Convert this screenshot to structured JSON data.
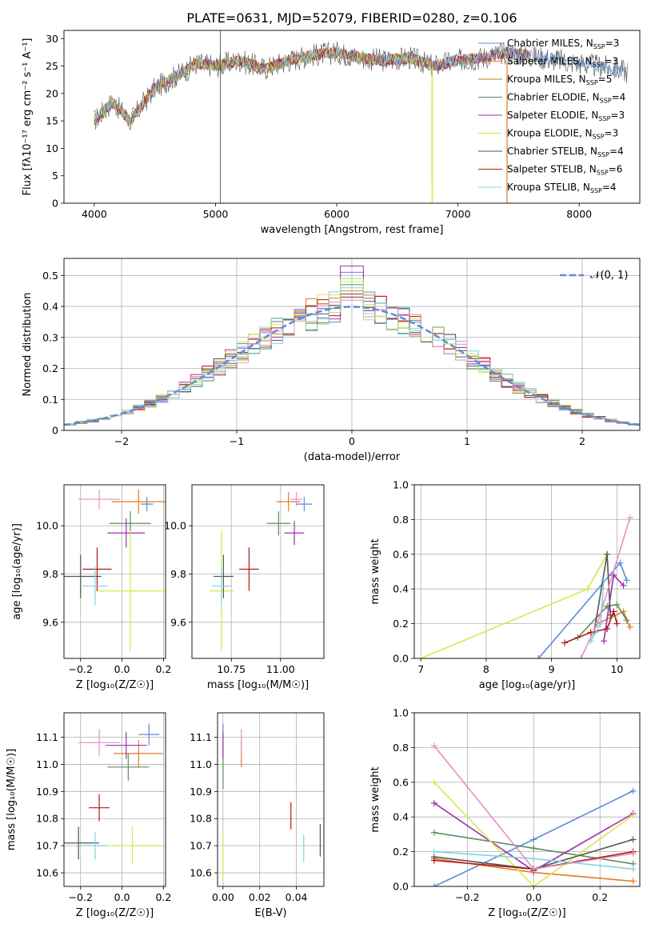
{
  "title": "PLATE=0631, MJD=52079, FIBERID=0280, z=0.106",
  "colors": {
    "chabrier_miles": "#5b8bd9",
    "salpeter_miles": "#e07d25",
    "kroupa_miles": "#b8860b",
    "chabrier_elodie": "#5e8c5e",
    "salpeter_elodie": "#9b30b0",
    "kroupa_elodie": "#d6e84c",
    "chabrier_stelib": "#555555",
    "salpeter_stelib": "#b01818",
    "kroupa_stelib": "#7fd4e0",
    "pink": "#e58fc0",
    "lightgreen": "#a6e08a"
  },
  "legend": [
    {
      "label": "Chabrier MILES, N",
      "sub": "SSP",
      "tail": "=3",
      "color": "#5b8bd9"
    },
    {
      "label": "Salpeter MILES, N",
      "sub": "SSP",
      "tail": "=3",
      "color": "#e07d25"
    },
    {
      "label": "Kroupa MILES, N",
      "sub": "SSP",
      "tail": "=5",
      "color": "#b8860b"
    },
    {
      "label": "Chabrier ELODIE, N",
      "sub": "SSP",
      "tail": "=4",
      "color": "#5e8c5e"
    },
    {
      "label": "Salpeter ELODIE, N",
      "sub": "SSP",
      "tail": "=3",
      "color": "#9b30b0"
    },
    {
      "label": "Kroupa ELODIE, N",
      "sub": "SSP",
      "tail": "=3",
      "color": "#d6e84c"
    },
    {
      "label": "Chabrier STELIB, N",
      "sub": "SSP",
      "tail": "=4",
      "color": "#555555"
    },
    {
      "label": "Salpeter STELIB, N",
      "sub": "SSP",
      "tail": "=6",
      "color": "#b01818"
    },
    {
      "label": "Kroupa STELIB, N",
      "sub": "SSP",
      "tail": "=4",
      "color": "#7fd4e0"
    }
  ],
  "chart_data": [
    {
      "type": "line",
      "id": "spectrum",
      "xlabel": "wavelength [Angstrom, rest frame]",
      "ylabel": "Flux [fλ10⁻¹⁷ erg cm⁻² s⁻¹ A⁻¹]",
      "xlim": [
        3750,
        8500
      ],
      "ylim": [
        0,
        31.5
      ],
      "xticks": [
        4000,
        5000,
        6000,
        7000,
        8000
      ],
      "yticks": [
        0,
        5,
        10,
        15,
        20,
        25,
        30
      ],
      "continuum_x": [
        4000,
        4150,
        4300,
        4500,
        4700,
        4850,
        5000,
        5200,
        5400,
        5600,
        5800,
        6000,
        6200,
        6400,
        6600,
        6800,
        7000,
        7200,
        7400,
        7700,
        8000,
        8300,
        8400
      ],
      "continuum_y": [
        15,
        18.5,
        15,
        21,
        23.5,
        25.5,
        25,
        26,
        24.5,
        26,
        27,
        27.5,
        26.5,
        26,
        26.5,
        25,
        26,
        26.5,
        27.5,
        26.5,
        25.5,
        24.5,
        24
      ]
    },
    {
      "type": "histogram",
      "id": "residuals",
      "xlabel": "(data-model)/error",
      "ylabel": "Normed distribution",
      "xlim": [
        -2.5,
        2.5
      ],
      "ylim": [
        0,
        0.555
      ],
      "xticks": [
        -2,
        -1,
        0,
        1,
        2
      ],
      "yticks": [
        0.0,
        0.1,
        0.2,
        0.3,
        0.4,
        0.5
      ],
      "legend": "𝒩(0, 1)",
      "bin_width": 0.1,
      "peak_values": {
        "blue": 0.51,
        "purple": 0.53,
        "orange": 0.45
      }
    },
    {
      "type": "scatter",
      "id": "age_vs_z",
      "xlabel": "Z [log₁₀(Z/Z☉)]",
      "ylabel": "age  [log₁₀(age/yr)]",
      "xlim": [
        -0.28,
        0.21
      ],
      "ylim": [
        9.45,
        10.17
      ],
      "xticks": [
        -0.2,
        0.0,
        0.2
      ],
      "yticks": [
        9.6,
        9.8,
        10.0
      ],
      "points": [
        {
          "x": 0.12,
          "y": 10.09,
          "xe": 0.03,
          "ye": 0.03,
          "c": "#5b8bd9"
        },
        {
          "x": 0.08,
          "y": 10.1,
          "xe": 0.13,
          "ye": 0.05,
          "c": "#e07d25"
        },
        {
          "x": 0.04,
          "y": 10.01,
          "xe": 0.1,
          "ye": 0.05,
          "c": "#5e8c5e"
        },
        {
          "x": 0.02,
          "y": 9.97,
          "xe": 0.09,
          "ye": 0.06,
          "c": "#9b30b0"
        },
        {
          "x": 0.04,
          "y": 9.73,
          "xe": 0.17,
          "ye": 0.25,
          "c": "#d6e84c"
        },
        {
          "x": -0.2,
          "y": 9.79,
          "xe": 0.1,
          "ye": 0.09,
          "c": "#555555"
        },
        {
          "x": -0.12,
          "y": 9.82,
          "xe": 0.07,
          "ye": 0.09,
          "c": "#b01818"
        },
        {
          "x": -0.13,
          "y": 9.75,
          "xe": 0.06,
          "ye": 0.08,
          "c": "#7fd4e0"
        },
        {
          "x": -0.11,
          "y": 10.11,
          "xe": 0.1,
          "ye": 0.04,
          "c": "#e58fc0"
        }
      ]
    },
    {
      "type": "scatter",
      "id": "age_vs_mass",
      "xlabel": "mass [log₁₀(M/M☉)]",
      "ylabel": "",
      "xlim": [
        10.55,
        11.22
      ],
      "ylim": [
        9.45,
        10.17
      ],
      "xticks": [
        10.75,
        11.0
      ],
      "yticks": [
        9.6,
        9.8,
        10.0
      ],
      "points": [
        {
          "x": 11.12,
          "y": 10.09,
          "xe": 0.04,
          "ye": 0.03,
          "c": "#5b8bd9"
        },
        {
          "x": 11.04,
          "y": 10.1,
          "xe": 0.06,
          "ye": 0.04,
          "c": "#e07d25"
        },
        {
          "x": 10.99,
          "y": 10.01,
          "xe": 0.06,
          "ye": 0.05,
          "c": "#5e8c5e"
        },
        {
          "x": 11.07,
          "y": 9.97,
          "xe": 0.05,
          "ye": 0.05,
          "c": "#9b30b0"
        },
        {
          "x": 10.7,
          "y": 9.73,
          "xe": 0.06,
          "ye": 0.25,
          "c": "#d6e84c"
        },
        {
          "x": 10.71,
          "y": 9.79,
          "xe": 0.05,
          "ye": 0.09,
          "c": "#555555"
        },
        {
          "x": 10.84,
          "y": 9.82,
          "xe": 0.05,
          "ye": 0.09,
          "c": "#b01818"
        },
        {
          "x": 10.7,
          "y": 9.75,
          "xe": 0.05,
          "ye": 0.08,
          "c": "#7fd4e0"
        },
        {
          "x": 11.08,
          "y": 10.11,
          "xe": 0.03,
          "ye": 0.03,
          "c": "#e58fc0"
        }
      ]
    },
    {
      "type": "line",
      "id": "weight_vs_age",
      "xlabel": "age  [log₁₀(age/yr)]",
      "ylabel": "mass weight",
      "xlim": [
        6.9,
        10.35
      ],
      "ylim": [
        0,
        1.0
      ],
      "xticks": [
        7,
        8,
        9,
        10
      ],
      "yticks": [
        0.0,
        0.2,
        0.4,
        0.6,
        0.8,
        1.0
      ],
      "series": [
        {
          "c": "#5b8bd9",
          "x": [
            8.8,
            10.05,
            10.15
          ],
          "y": [
            0.0,
            0.55,
            0.45
          ]
        },
        {
          "c": "#e07d25",
          "x": [
            9.7,
            10.1,
            10.2
          ],
          "y": [
            0.2,
            0.27,
            0.18
          ]
        },
        {
          "c": "#5e8c5e",
          "x": [
            9.4,
            9.85,
            10.0,
            10.15
          ],
          "y": [
            0.12,
            0.3,
            0.31,
            0.22
          ]
        },
        {
          "c": "#9b30b0",
          "x": [
            9.8,
            9.95,
            10.1
          ],
          "y": [
            0.1,
            0.48,
            0.42
          ]
        },
        {
          "c": "#d6e84c",
          "x": [
            7.0,
            9.55,
            9.85
          ],
          "y": [
            0.0,
            0.4,
            0.6
          ]
        },
        {
          "c": "#555555",
          "x": [
            9.65,
            9.85,
            9.9
          ],
          "y": [
            0.15,
            0.6,
            0.25
          ]
        },
        {
          "c": "#b01818",
          "x": [
            9.2,
            9.6,
            9.85,
            9.95,
            10.0
          ],
          "y": [
            0.09,
            0.15,
            0.17,
            0.27,
            0.2
          ]
        },
        {
          "c": "#7fd4e0",
          "x": [
            9.6,
            9.75,
            9.8
          ],
          "y": [
            0.1,
            0.2,
            0.45
          ]
        },
        {
          "c": "#e58fc0",
          "x": [
            9.45,
            9.7,
            10.2
          ],
          "y": [
            0.0,
            0.2,
            0.81
          ]
        }
      ]
    },
    {
      "type": "scatter",
      "id": "mass_vs_z",
      "xlabel": "Z [log₁₀(Z/Z☉)]",
      "ylabel": "mass [log₁₀(M/M☉)]",
      "xlim": [
        -0.28,
        0.21
      ],
      "ylim": [
        10.55,
        11.19
      ],
      "xticks": [
        -0.2,
        0.0,
        0.2
      ],
      "yticks": [
        10.6,
        10.7,
        10.8,
        10.9,
        11.0,
        11.1
      ],
      "points": [
        {
          "x": 0.13,
          "y": 11.11,
          "xe": 0.05,
          "ye": 0.04,
          "c": "#5b8bd9"
        },
        {
          "x": 0.08,
          "y": 11.04,
          "xe": 0.12,
          "ye": 0.05,
          "c": "#e07d25"
        },
        {
          "x": 0.03,
          "y": 10.99,
          "xe": 0.1,
          "ye": 0.05,
          "c": "#5e8c5e"
        },
        {
          "x": 0.02,
          "y": 11.07,
          "xe": 0.1,
          "ye": 0.05,
          "c": "#9b30b0"
        },
        {
          "x": 0.05,
          "y": 10.7,
          "xe": 0.15,
          "ye": 0.07,
          "c": "#d6e84c"
        },
        {
          "x": -0.21,
          "y": 10.71,
          "xe": 0.1,
          "ye": 0.06,
          "c": "#555555"
        },
        {
          "x": -0.11,
          "y": 10.84,
          "xe": 0.05,
          "ye": 0.05,
          "c": "#b01818"
        },
        {
          "x": -0.13,
          "y": 10.7,
          "xe": 0.06,
          "ye": 0.05,
          "c": "#7fd4e0"
        },
        {
          "x": -0.11,
          "y": 11.08,
          "xe": 0.1,
          "ye": 0.05,
          "c": "#e58fc0"
        }
      ]
    },
    {
      "type": "scatter",
      "id": "mass_vs_ebv",
      "xlabel": "E(B-V)",
      "ylabel": "",
      "xlim": [
        -0.003,
        0.055
      ],
      "ylim": [
        10.55,
        11.19
      ],
      "xticks": [
        0.0,
        0.02,
        0.04
      ],
      "yticks": [
        10.6,
        10.7,
        10.8,
        10.9,
        11.0,
        11.1
      ],
      "points": [
        {
          "x": 0.0,
          "y": 11.11,
          "xe": 0.0,
          "ye": 0.04,
          "c": "#5b8bd9"
        },
        {
          "x": 0.01,
          "y": 11.04,
          "xe": 0.0,
          "ye": 0.05,
          "c": "#e07d25"
        },
        {
          "x": 0.0,
          "y": 10.99,
          "xe": 0.0,
          "ye": 0.08,
          "c": "#5e8c5e"
        },
        {
          "x": 0.0,
          "y": 11.07,
          "xe": 0.0,
          "ye": 0.05,
          "c": "#9b30b0"
        },
        {
          "x": 0.0,
          "y": 10.66,
          "xe": 0.0,
          "ye": 0.08,
          "c": "#d6e84c"
        },
        {
          "x": 0.053,
          "y": 10.72,
          "xe": 0.0,
          "ye": 0.06,
          "c": "#555555"
        },
        {
          "x": 0.037,
          "y": 10.81,
          "xe": 0.0,
          "ye": 0.05,
          "c": "#b01818"
        },
        {
          "x": 0.044,
          "y": 10.69,
          "xe": 0.0,
          "ye": 0.05,
          "c": "#7fd4e0"
        },
        {
          "x": 0.01,
          "y": 11.08,
          "xe": 0.0,
          "ye": 0.05,
          "c": "#e58fc0"
        }
      ]
    },
    {
      "type": "line",
      "id": "weight_vs_z",
      "xlabel": "Z [log₁₀(Z/Z☉)]",
      "ylabel": "mass weight",
      "xlim": [
        -0.36,
        0.32
      ],
      "ylim": [
        0,
        1.0
      ],
      "xticks": [
        -0.2,
        0.0,
        0.2
      ],
      "yticks": [
        0.0,
        0.2,
        0.4,
        0.6,
        0.8,
        1.0
      ],
      "series": [
        {
          "c": "#5b8bd9",
          "x": [
            -0.3,
            0.0,
            0.3
          ],
          "y": [
            0.0,
            0.27,
            0.55
          ]
        },
        {
          "c": "#e07d25",
          "x": [
            -0.3,
            0.0,
            0.3
          ],
          "y": [
            0.16,
            0.08,
            0.03
          ]
        },
        {
          "c": "#5e8c5e",
          "x": [
            -0.3,
            0.0,
            0.3
          ],
          "y": [
            0.31,
            0.22,
            0.13
          ]
        },
        {
          "c": "#9b30b0",
          "x": [
            -0.3,
            0.0,
            0.3
          ],
          "y": [
            0.48,
            0.09,
            0.42
          ]
        },
        {
          "c": "#d6e84c",
          "x": [
            -0.3,
            0.0,
            0.3
          ],
          "y": [
            0.6,
            0.0,
            0.41
          ]
        },
        {
          "c": "#555555",
          "x": [
            -0.3,
            0.0,
            0.3
          ],
          "y": [
            0.17,
            0.1,
            0.27
          ]
        },
        {
          "c": "#b01818",
          "x": [
            -0.3,
            0.0,
            0.3
          ],
          "y": [
            0.15,
            0.1,
            0.2
          ]
        },
        {
          "c": "#7fd4e0",
          "x": [
            -0.3,
            0.0,
            0.3
          ],
          "y": [
            0.2,
            0.16,
            0.1
          ]
        },
        {
          "c": "#e58fc0",
          "x": [
            -0.3,
            0.0,
            0.3
          ],
          "y": [
            0.81,
            0.1,
            0.19
          ]
        }
      ]
    }
  ]
}
